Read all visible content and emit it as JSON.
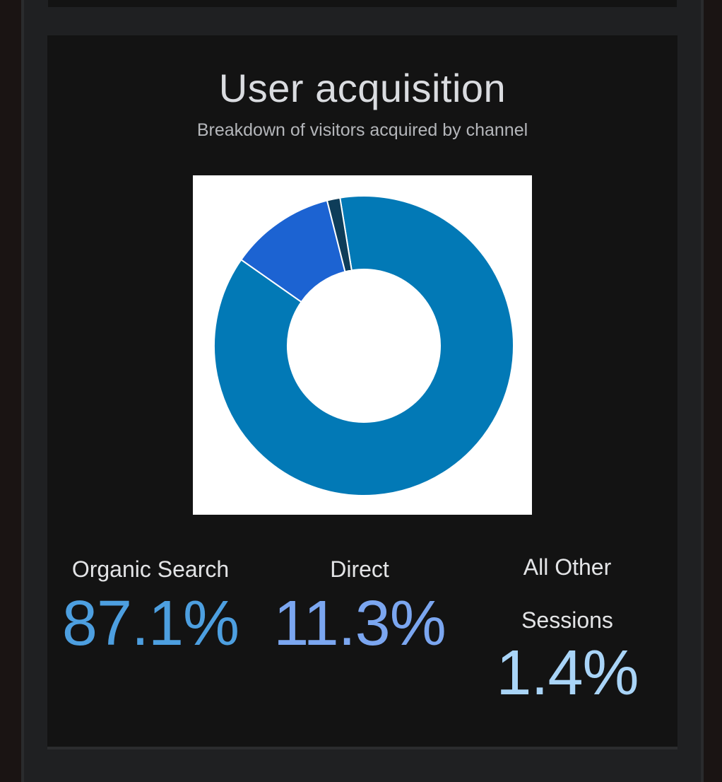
{
  "card": {
    "title": "User acquisition",
    "subtitle": "Breakdown of visitors acquired by channel"
  },
  "chart_data": {
    "type": "pie",
    "donut": true,
    "title": "User acquisition",
    "subtitle": "Breakdown of visitors acquired by channel",
    "unit": "%",
    "series": [
      {
        "values": [
          87.1,
          11.3,
          1.4
        ],
        "categories": [
          "Organic Search",
          "Direct",
          "All Other Sessions"
        ]
      }
    ],
    "slice_colors": [
      "#0279b6",
      "#1c63d2",
      "#0e3d59"
    ],
    "legend": "below"
  },
  "stats": [
    {
      "label": "Organic Search",
      "value": "87.1%",
      "color": "#4d9fe0"
    },
    {
      "label": "Direct",
      "value": "11.3%",
      "color": "#7ba6f0"
    },
    {
      "label": "All Other Sessions",
      "value": "1.4%",
      "color": "#a9d4f7"
    }
  ],
  "colors": {
    "page_background": "#1a1413",
    "card_background": "#131313",
    "title_text": "#dadce0",
    "subtitle_text": "#b4b6ba"
  }
}
